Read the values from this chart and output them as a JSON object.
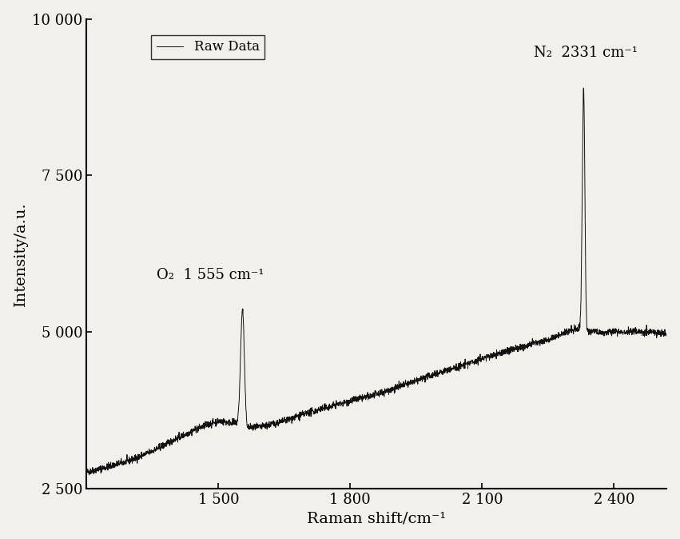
{
  "title": "",
  "xlabel": "Raman shift/cm⁻¹",
  "ylabel": "Intensity/a.u.",
  "xlim": [
    1200,
    2520
  ],
  "ylim": [
    2500,
    10000
  ],
  "yticks": [
    2500,
    5000,
    7500,
    10000
  ],
  "ytick_labels": [
    "2 500",
    "5 000",
    "7 500",
    "10 000"
  ],
  "xticks": [
    1500,
    1800,
    2100,
    2400
  ],
  "xtick_labels": [
    "1 500",
    "1 800",
    "2 100",
    "2 400"
  ],
  "line_color": "#111111",
  "legend_label": "Raw Data",
  "o2_annotation": "O₂  1 555 cm⁻¹",
  "n2_annotation": "N₂  2331 cm⁻¹",
  "background_color": "#f2f0eb",
  "figure_bg": "#f2f0eb"
}
